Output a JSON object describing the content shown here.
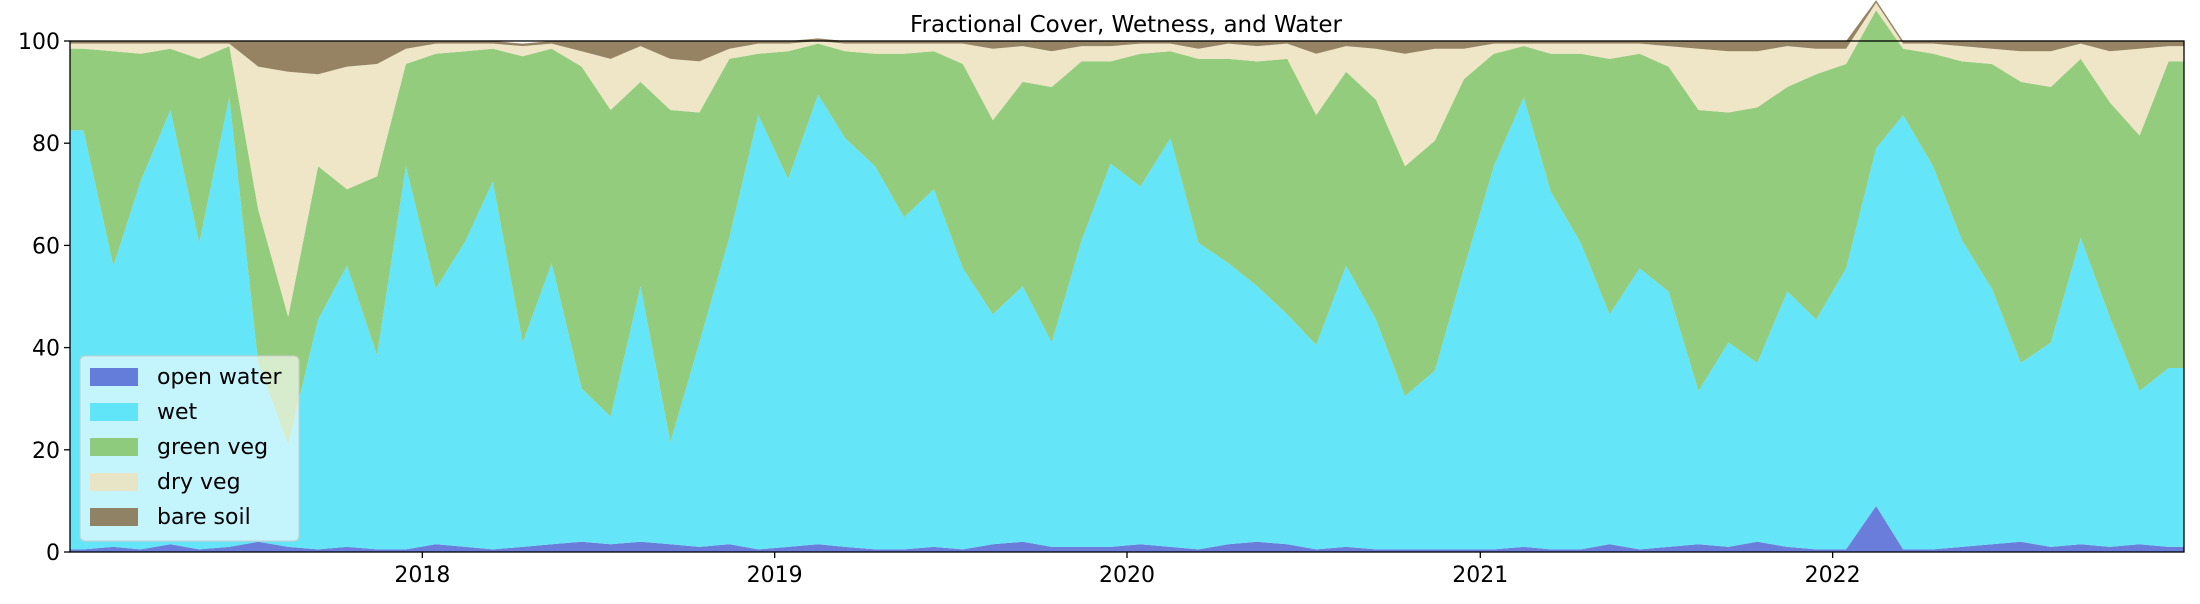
{
  "chart_data": {
    "type": "area",
    "title": "Fractional Cover, Wetness, and Water",
    "xlabel": "",
    "ylabel": "",
    "x_axis": "date",
    "xlim": [
      "2017-01-01",
      "2022-12-31"
    ],
    "ylim": [
      0,
      100
    ],
    "stacked": true,
    "grid": false,
    "legend_position": "lower-left",
    "x_tick_labels": [
      "2018",
      "2019",
      "2020",
      "2021",
      "2022"
    ],
    "y_tick_labels": [
      "0",
      "20",
      "40",
      "60",
      "80",
      "100"
    ],
    "x": [
      "2017-01-15",
      "2017-02-15",
      "2017-03-15",
      "2017-04-15",
      "2017-05-15",
      "2017-06-15",
      "2017-07-15",
      "2017-08-15",
      "2017-09-15",
      "2017-10-15",
      "2017-11-15",
      "2017-12-15",
      "2018-01-15",
      "2018-02-15",
      "2018-03-15",
      "2018-04-15",
      "2018-05-15",
      "2018-06-15",
      "2018-07-15",
      "2018-08-15",
      "2018-09-15",
      "2018-10-15",
      "2018-11-15",
      "2018-12-15",
      "2019-01-15",
      "2019-02-15",
      "2019-03-15",
      "2019-04-15",
      "2019-05-15",
      "2019-06-15",
      "2019-07-15",
      "2019-08-15",
      "2019-09-15",
      "2019-10-15",
      "2019-11-15",
      "2019-12-15",
      "2020-01-15",
      "2020-02-15",
      "2020-03-15",
      "2020-04-15",
      "2020-05-15",
      "2020-06-15",
      "2020-07-15",
      "2020-08-15",
      "2020-09-15",
      "2020-10-15",
      "2020-11-15",
      "2020-12-15",
      "2021-01-15",
      "2021-02-15",
      "2021-03-15",
      "2021-04-15",
      "2021-05-15",
      "2021-06-15",
      "2021-07-15",
      "2021-08-15",
      "2021-09-15",
      "2021-10-15",
      "2021-11-15",
      "2021-12-15",
      "2022-01-15",
      "2022-02-15",
      "2022-03-15",
      "2022-04-15",
      "2022-05-15",
      "2022-06-15",
      "2022-07-15",
      "2022-08-15",
      "2022-09-15",
      "2022-10-15",
      "2022-11-15",
      "2022-12-15"
    ],
    "series": [
      {
        "name": "open water",
        "color": "#5a6fd6",
        "fill_opacity": 0.9,
        "values": [
          0.5,
          1,
          0.5,
          1.5,
          0.5,
          1,
          2,
          1,
          0.5,
          1,
          0.5,
          0.5,
          1.5,
          1,
          0.5,
          1,
          1.5,
          2,
          1.5,
          2,
          1.5,
          1,
          1.5,
          0.5,
          1,
          1.5,
          1,
          0.5,
          0.5,
          1,
          0.5,
          1.5,
          2,
          1,
          1,
          1,
          1.5,
          1,
          0.5,
          1.5,
          2,
          1.5,
          0.5,
          1,
          0.5,
          0.5,
          0.5,
          0.5,
          0.5,
          1,
          0.5,
          0.5,
          1.5,
          0.5,
          1,
          1.5,
          1,
          2,
          1,
          0.5,
          0.5,
          9,
          0.5,
          0.5,
          1,
          1.5,
          2,
          1,
          1.5,
          1,
          1.5,
          1
        ]
      },
      {
        "name": "wet",
        "color": "#54e2f7",
        "fill_opacity": 0.9,
        "values": [
          82,
          55,
          72,
          85,
          60,
          88,
          35,
          20,
          45,
          55,
          38,
          75,
          50,
          60,
          72,
          40,
          55,
          30,
          25,
          50,
          20,
          40,
          60,
          85,
          72,
          88,
          80,
          75,
          65,
          70,
          55,
          45,
          50,
          40,
          60,
          75,
          70,
          80,
          60,
          55,
          50,
          45,
          40,
          55,
          45,
          30,
          35,
          55,
          75,
          88,
          70,
          60,
          45,
          55,
          50,
          30,
          40,
          35,
          50,
          45,
          55,
          70,
          85,
          75,
          60,
          50,
          35,
          40,
          60,
          45,
          30,
          35
        ]
      },
      {
        "name": "green veg",
        "color": "#88c76f",
        "fill_opacity": 0.9,
        "values": [
          16,
          42,
          25,
          12,
          36,
          10,
          30,
          25,
          30,
          15,
          35,
          20,
          46,
          37,
          26,
          56,
          42,
          63,
          60,
          40,
          65,
          45,
          35,
          12,
          25,
          10,
          17,
          22,
          32,
          27,
          40,
          38,
          40,
          50,
          35,
          20,
          26,
          17,
          36,
          40,
          44,
          50,
          45,
          38,
          43,
          45,
          45,
          37,
          22,
          10,
          27,
          37,
          50,
          42,
          44,
          55,
          45,
          50,
          40,
          48,
          40,
          27,
          13,
          22,
          35,
          44,
          55,
          50,
          35,
          42,
          50,
          60
        ]
      },
      {
        "name": "dry veg",
        "color": "#ece3c1",
        "fill_opacity": 0.9,
        "values": [
          1,
          1.5,
          2,
          1,
          3,
          0.5,
          28,
          48,
          18,
          24,
          22,
          3,
          2,
          1.5,
          1,
          2,
          1,
          3,
          10,
          7,
          10,
          10,
          2,
          2,
          1.5,
          0.5,
          1.5,
          2,
          2,
          1.5,
          4,
          14,
          7,
          7,
          3,
          3,
          2,
          1.5,
          2,
          3,
          3,
          3,
          12,
          5,
          10,
          22,
          18,
          6,
          2,
          0.5,
          2,
          2,
          3,
          2,
          4,
          12,
          12,
          11,
          8,
          5,
          3,
          1.5,
          1,
          2,
          3,
          3,
          6,
          7,
          3,
          10,
          17,
          3
        ]
      },
      {
        "name": "bare soil",
        "color": "#8b7553",
        "fill_opacity": 0.9,
        "values": [
          0.5,
          0.5,
          0.5,
          0.5,
          0.5,
          0.5,
          5,
          6,
          6.5,
          5,
          4.5,
          1.5,
          0.5,
          0.5,
          0.5,
          0.5,
          0.5,
          2,
          3.5,
          1,
          3.5,
          4,
          1.5,
          0.5,
          0.5,
          0.5,
          0.5,
          0.5,
          0.5,
          0.5,
          0.5,
          1.5,
          1,
          2,
          1,
          1,
          0.5,
          0.5,
          1.5,
          0.5,
          1,
          0.5,
          2.5,
          1,
          1.5,
          2.5,
          1.5,
          1.5,
          0.5,
          0.5,
          0.5,
          0.5,
          0.5,
          0.5,
          1,
          1.5,
          2,
          2,
          1,
          1.5,
          1.5,
          0.5,
          0.5,
          0.5,
          1,
          1.5,
          2,
          2,
          0.5,
          2,
          1.5,
          1
        ]
      }
    ]
  }
}
